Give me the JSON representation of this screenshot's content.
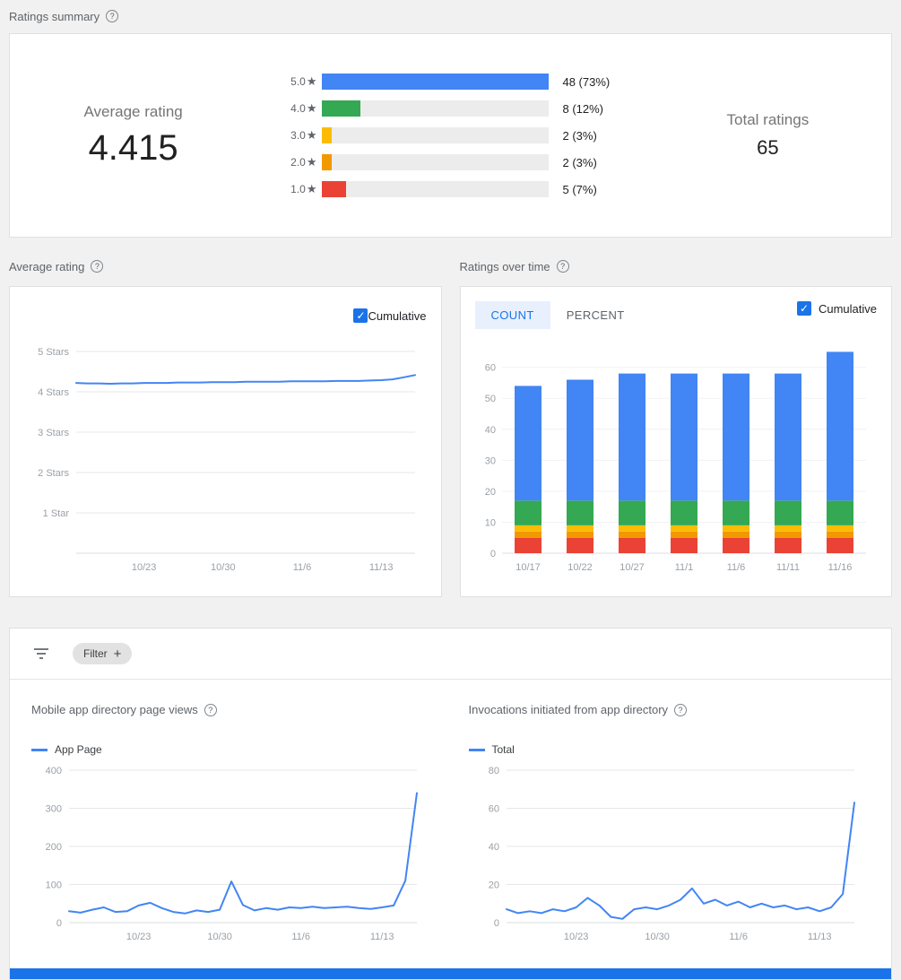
{
  "summary": {
    "title": "Ratings summary",
    "average_rating_label": "Average rating",
    "average_rating_value": "4.415",
    "total_ratings_label": "Total ratings",
    "total_ratings_value": "65",
    "star_char": "★",
    "max_value": 48,
    "distribution": [
      {
        "label": "5.0",
        "value": 48,
        "text": "48 (73%)",
        "color": "#4285f4"
      },
      {
        "label": "4.0",
        "value": 8,
        "text": "8 (12%)",
        "color": "#34a853"
      },
      {
        "label": "3.0",
        "value": 2,
        "text": "2 (3%)",
        "color": "#fbbc04"
      },
      {
        "label": "2.0",
        "value": 2,
        "text": "2 (3%)",
        "color": "#f29900"
      },
      {
        "label": "1.0",
        "value": 5,
        "text": "5 (7%)",
        "color": "#ea4335"
      }
    ]
  },
  "average_rating_section": {
    "title": "Average rating",
    "cumulative_label": "Cumulative",
    "cumulative_checked": true
  },
  "ratings_over_time_section": {
    "title": "Ratings over time",
    "tabs": [
      {
        "label": "COUNT",
        "active": true
      },
      {
        "label": "PERCENT",
        "active": false
      }
    ],
    "cumulative_label": "Cumulative",
    "cumulative_checked": true
  },
  "filter_card": {
    "filter_chip_label": "Filter",
    "views_title": "Mobile app directory page views",
    "views_legend": "App Page",
    "invocations_title": "Invocations initiated from app directory",
    "invocations_legend": "Total"
  },
  "colors": {
    "accent_blue": "#1a73e8",
    "chart_blue": "#4285f4",
    "green": "#34a853",
    "yellow": "#fbbc04",
    "orange": "#f29900",
    "red": "#ea4335"
  },
  "chart_data": [
    {
      "id": "avg-rating-line",
      "type": "line",
      "title": "Average rating",
      "x_range": [
        0,
        30
      ],
      "x_tick_positions": [
        6,
        13,
        20,
        27
      ],
      "x_tick_labels": [
        "10/23",
        "10/30",
        "11/6",
        "11/13"
      ],
      "ylim": [
        0,
        5
      ],
      "y_ticks": [
        5,
        4,
        3,
        2,
        1
      ],
      "y_tick_labels": [
        "5 Stars",
        "4 Stars",
        "3 Stars",
        "2 Stars",
        "1 Star"
      ],
      "series": [
        {
          "name": "Cumulative average rating",
          "color": "#4285f4",
          "values": [
            4.22,
            4.21,
            4.21,
            4.2,
            4.21,
            4.21,
            4.22,
            4.22,
            4.22,
            4.23,
            4.23,
            4.23,
            4.24,
            4.24,
            4.24,
            4.25,
            4.25,
            4.25,
            4.25,
            4.26,
            4.26,
            4.26,
            4.26,
            4.27,
            4.27,
            4.27,
            4.28,
            4.29,
            4.31,
            4.36,
            4.415
          ]
        }
      ]
    },
    {
      "id": "ratings-over-time-bars",
      "type": "stacked-bar",
      "title": "Ratings over time",
      "categories": [
        "10/17",
        "10/22",
        "10/27",
        "11/1",
        "11/6",
        "11/11",
        "11/16"
      ],
      "ylim": [
        0,
        68
      ],
      "y_ticks": [
        0,
        10,
        20,
        30,
        40,
        50,
        60
      ],
      "series": [
        {
          "name": "1 star",
          "color": "#ea4335",
          "values": [
            5,
            5,
            5,
            5,
            5,
            5,
            5
          ]
        },
        {
          "name": "2 stars",
          "color": "#f29900",
          "values": [
            2,
            2,
            2,
            2,
            2,
            2,
            2
          ]
        },
        {
          "name": "3 stars",
          "color": "#fbbc04",
          "values": [
            2,
            2,
            2,
            2,
            2,
            2,
            2
          ]
        },
        {
          "name": "4 stars",
          "color": "#34a853",
          "values": [
            8,
            8,
            8,
            8,
            8,
            8,
            8
          ]
        },
        {
          "name": "5 stars",
          "color": "#4285f4",
          "values": [
            37,
            39,
            41,
            41,
            41,
            41,
            48
          ]
        }
      ]
    },
    {
      "id": "app-page-views-line",
      "type": "line",
      "title": "Mobile app directory page views",
      "x_range": [
        0,
        30
      ],
      "x_tick_positions": [
        6,
        13,
        20,
        27
      ],
      "x_tick_labels": [
        "10/23",
        "10/30",
        "11/6",
        "11/13"
      ],
      "ylim": [
        0,
        400
      ],
      "y_ticks": [
        400,
        300,
        200,
        100,
        0
      ],
      "series": [
        {
          "name": "App Page",
          "color": "#4285f4",
          "values": [
            30,
            26,
            34,
            40,
            28,
            30,
            45,
            52,
            38,
            28,
            24,
            32,
            28,
            34,
            108,
            46,
            32,
            38,
            34,
            40,
            38,
            42,
            38,
            40,
            42,
            38,
            36,
            40,
            45,
            110,
            340
          ]
        }
      ]
    },
    {
      "id": "invocations-line",
      "type": "line",
      "title": "Invocations initiated from app directory",
      "x_range": [
        0,
        30
      ],
      "x_tick_positions": [
        6,
        13,
        20,
        27
      ],
      "x_tick_labels": [
        "10/23",
        "10/30",
        "11/6",
        "11/13"
      ],
      "ylim": [
        0,
        80
      ],
      "y_ticks": [
        80,
        60,
        40,
        20,
        0
      ],
      "series": [
        {
          "name": "Total",
          "color": "#4285f4",
          "values": [
            7,
            5,
            6,
            5,
            7,
            6,
            8,
            13,
            9,
            3,
            2,
            7,
            8,
            7,
            9,
            12,
            18,
            10,
            12,
            9,
            11,
            8,
            10,
            8,
            9,
            7,
            8,
            6,
            8,
            15,
            63
          ]
        }
      ]
    }
  ]
}
